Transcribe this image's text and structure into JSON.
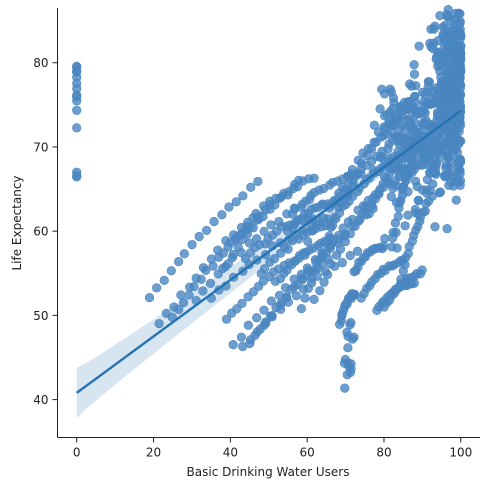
{
  "chart_data": {
    "type": "scatter",
    "xlabel": "Basic Drinking Water Users",
    "ylabel": "Life Expectancy",
    "xlim": [
      -5,
      105
    ],
    "ylim": [
      35.5,
      86.5
    ],
    "xticks": [
      0,
      20,
      40,
      60,
      80,
      100
    ],
    "yticks": [
      40,
      50,
      60,
      70,
      80
    ],
    "grid": false,
    "legend": "none",
    "colors": {
      "points": "#4a86c0",
      "line": "#2573b4",
      "band": "#cddfee"
    },
    "regression": {
      "intercept": 40.8,
      "slope": 0.335,
      "x_range": [
        0,
        100
      ],
      "ci_half_width_at_0": 3.0,
      "ci_half_width_at_100": 0.5
    },
    "trajectories": [
      {
        "start": [
          19.0,
          52.0
        ],
        "end": [
          47.0,
          65.8
        ]
      },
      {
        "start": [
          21.5,
          49.0
        ],
        "end": [
          50.5,
          63.6
        ]
      },
      {
        "start": [
          25.0,
          49.7
        ],
        "end": [
          47.0,
          61.2
        ]
      },
      {
        "start": [
          31.0,
          52.0
        ],
        "end": [
          60.5,
          63.8
        ]
      },
      {
        "start": [
          35.0,
          52.0
        ],
        "end": [
          65.0,
          61.5
        ]
      },
      {
        "start": [
          39.0,
          49.5
        ],
        "end": [
          59.5,
          57.2
        ]
      },
      {
        "start": [
          41.0,
          46.5
        ],
        "end": [
          70.0,
          59.3
        ]
      },
      {
        "start": [
          43.0,
          46.2
        ],
        "end": [
          73.0,
          57.5
        ]
      },
      {
        "start": [
          45.0,
          46.8
        ],
        "end": [
          65.5,
          56.7
        ]
      },
      {
        "start": [
          49.0,
          49.0
        ],
        "end": [
          77.5,
          62.8
        ]
      },
      {
        "start": [
          52.0,
          54.0
        ],
        "end": [
          66.5,
          59.0
        ]
      },
      {
        "start": [
          38.0,
          55.5
        ],
        "end": [
          58.0,
          66.0
        ]
      },
      {
        "start": [
          44.0,
          56.8
        ],
        "end": [
          61.5,
          61.6
        ]
      },
      {
        "start": [
          55.0,
          60.0
        ],
        "end": [
          68.0,
          63.5
        ]
      },
      {
        "start": [
          58.5,
          50.8
        ],
        "end": [
          72.0,
          65.5
        ]
      },
      {
        "start": [
          62.0,
          52.0
        ],
        "end": [
          79.0,
          64.8
        ]
      },
      {
        "start": [
          48.0,
          55.0
        ],
        "end": [
          66.0,
          61.0
        ]
      },
      {
        "start": [
          66.0,
          60.5
        ],
        "end": [
          84.0,
          74.5
        ]
      },
      {
        "start": [
          68.0,
          64.5
        ],
        "end": [
          88.0,
          76.0
        ]
      },
      {
        "start": [
          40.0,
          58.5
        ],
        "end": [
          62.0,
          66.5
        ]
      },
      {
        "start": [
          74.0,
          52.0
        ],
        "end": [
          85.0,
          56.5
        ]
      },
      {
        "start": [
          78.0,
          50.5
        ],
        "end": [
          88.0,
          53.8
        ]
      },
      {
        "start": [
          80.0,
          51.0
        ],
        "end": [
          90.0,
          55.0
        ]
      },
      {
        "start": [
          68.5,
          49.0
        ],
        "end": [
          72.5,
          52.5
        ]
      },
      {
        "start": [
          72.0,
          55.0
        ],
        "end": [
          80.0,
          58.0
        ]
      },
      {
        "start": [
          84.0,
          53.5
        ],
        "end": [
          91.0,
          63.0
        ]
      },
      {
        "start": [
          82.0,
          58.0
        ],
        "end": [
          88.0,
          70.0
        ]
      },
      {
        "start": [
          76.0,
          62.0
        ],
        "end": [
          90.0,
          72.0
        ]
      },
      {
        "start": [
          70.0,
          63.0
        ],
        "end": [
          84.0,
          68.5
        ]
      },
      {
        "start": [
          56.0,
          62.0
        ],
        "end": [
          74.0,
          67.0
        ]
      },
      {
        "start": [
          60.0,
          59.0
        ],
        "end": [
          81.0,
          70.0
        ]
      },
      {
        "start": [
          64.0,
          57.0
        ],
        "end": [
          84.0,
          66.5
        ]
      }
    ],
    "clusters": [
      {
        "center": [
          0,
          77.5
        ],
        "spread": [
          0.0,
          1.3
        ],
        "count": 12
      },
      {
        "center": [
          0,
          67.0
        ],
        "spread": [
          0.0,
          0.3
        ],
        "count": 3
      },
      {
        "center": [
          97.0,
          76.0
        ],
        "spread": [
          3.0,
          5.5
        ],
        "count": 280
      },
      {
        "center": [
          91.0,
          71.0
        ],
        "spread": [
          4.5,
          4.0
        ],
        "count": 180
      },
      {
        "center": [
          85.0,
          69.0
        ],
        "spread": [
          3.5,
          3.5
        ],
        "count": 90
      },
      {
        "center": [
          100.0,
          80.5
        ],
        "spread": [
          0.4,
          2.8
        ],
        "count": 40
      },
      {
        "center": [
          98.0,
          82.0
        ],
        "spread": [
          0.8,
          1.2
        ],
        "count": 10
      },
      {
        "center": [
          70.8,
          44.0
        ],
        "spread": [
          0.8,
          0.9
        ],
        "count": 10
      },
      {
        "center": [
          71.0,
          47.5
        ],
        "spread": [
          0.6,
          1.5
        ],
        "count": 6
      }
    ]
  }
}
